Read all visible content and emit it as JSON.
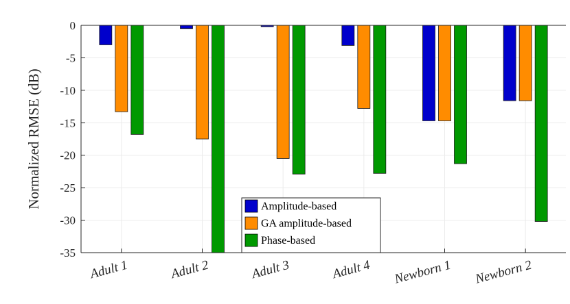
{
  "chart_data": {
    "type": "bar",
    "title": "",
    "xlabel": "",
    "ylabel": "Normalized RMSE (dB)",
    "ylim": [
      -35,
      0
    ],
    "yticks": [
      0,
      -5,
      -10,
      -15,
      -20,
      -25,
      -30,
      -35
    ],
    "ytick_labels": [
      "0",
      "-5",
      "-10",
      "-15",
      "-20",
      "-25",
      "-30",
      "-35"
    ],
    "grid": true,
    "legend_position": "bottom-center",
    "categories": [
      "Adult 1",
      "Adult 2",
      "Adult 3",
      "Adult 4",
      "Newborn 1",
      "Newborn 2"
    ],
    "series": [
      {
        "name": "Amplitude-based",
        "color": "#0000cc",
        "values": [
          -3.0,
          -0.5,
          -0.2,
          -3.1,
          -14.7,
          -11.6
        ]
      },
      {
        "name": "GA amplitude-based",
        "color": "#ff8c00",
        "values": [
          -13.3,
          -17.5,
          -20.5,
          -12.8,
          -14.7,
          -11.6
        ]
      },
      {
        "name": "Phase-based",
        "color": "#009900",
        "values": [
          -16.8,
          -35.0,
          -22.9,
          -22.8,
          -21.3,
          -30.2
        ]
      }
    ]
  }
}
